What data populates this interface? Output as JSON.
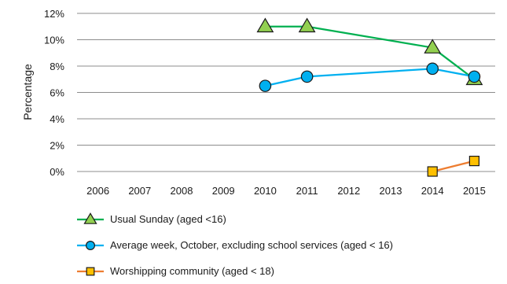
{
  "chart_data": {
    "type": "line",
    "title": "",
    "xlabel": "",
    "ylabel": "Percentage",
    "x": [
      "2006",
      "2007",
      "2008",
      "2009",
      "2010",
      "2011",
      "2012",
      "2013",
      "2014",
      "2015"
    ],
    "ylim": [
      0,
      12
    ],
    "y_ticks": [
      "0%",
      "2%",
      "4%",
      "6%",
      "8%",
      "10%",
      "12%"
    ],
    "y_tick_values": [
      0,
      2,
      4,
      6,
      8,
      10,
      12
    ],
    "grid": true,
    "legend_placement": "bottom",
    "series": [
      {
        "name": "Usual Sunday (aged <16)",
        "color": "#00b050",
        "marker": "triangle",
        "marker_fill": "#92d050",
        "points": [
          {
            "x": "2010",
            "y": 11.0
          },
          {
            "x": "2011",
            "y": 11.0
          },
          {
            "x": "2014",
            "y": 9.4
          },
          {
            "x": "2015",
            "y": 7.0
          }
        ]
      },
      {
        "name": "Average week, October, excluding school services (aged < 16)",
        "color": "#00b0f0",
        "marker": "circle",
        "marker_fill": "#00b0f0",
        "points": [
          {
            "x": "2010",
            "y": 6.5
          },
          {
            "x": "2011",
            "y": 7.2
          },
          {
            "x": "2014",
            "y": 7.8
          },
          {
            "x": "2015",
            "y": 7.2
          }
        ]
      },
      {
        "name": "Worshipping community (aged < 18)",
        "color": "#ed7d31",
        "marker": "square",
        "marker_fill": "#ffc000",
        "points": [
          {
            "x": "2014",
            "y": 0.0
          },
          {
            "x": "2015",
            "y": 0.8
          }
        ]
      }
    ]
  }
}
